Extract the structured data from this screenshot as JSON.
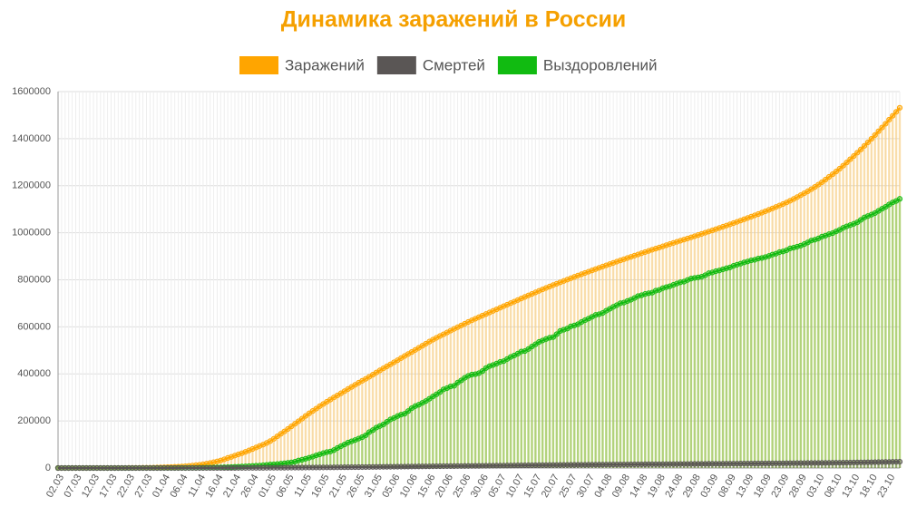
{
  "chart_data": {
    "type": "line",
    "title": "Динамика заражений в России",
    "categories": [
      "02.03",
      null,
      null,
      null,
      null,
      "07.03",
      null,
      null,
      null,
      null,
      "12.03",
      null,
      null,
      null,
      null,
      "17.03",
      null,
      null,
      null,
      null,
      "22.03",
      null,
      null,
      null,
      null,
      "27.03",
      null,
      null,
      null,
      null,
      "01.04",
      null,
      null,
      null,
      null,
      "06.04",
      null,
      null,
      null,
      null,
      "11.04",
      null,
      null,
      null,
      null,
      "16.04",
      null,
      null,
      null,
      null,
      "21.04",
      null,
      null,
      null,
      null,
      "26.04",
      null,
      null,
      null,
      null,
      "01.05",
      null,
      null,
      null,
      null,
      "06.05",
      null,
      null,
      null,
      null,
      "11.05",
      null,
      null,
      null,
      null,
      "16.05",
      null,
      null,
      null,
      null,
      "21.05",
      null,
      null,
      null,
      null,
      "26.05",
      null,
      null,
      null,
      null,
      "31.05",
      null,
      null,
      null,
      null,
      "05.06",
      null,
      null,
      null,
      null,
      "10.06",
      null,
      null,
      null,
      null,
      "15.06",
      null,
      null,
      null,
      null,
      "20.06",
      null,
      null,
      null,
      null,
      "25.06",
      null,
      null,
      null,
      null,
      "30.06",
      null,
      null,
      null,
      null,
      "05.07",
      null,
      null,
      null,
      null,
      "10.07",
      null,
      null,
      null,
      null,
      "15.07",
      null,
      null,
      null,
      null,
      "20.07",
      null,
      null,
      null,
      null,
      "25.07",
      null,
      null,
      null,
      null,
      "30.07",
      null,
      null,
      null,
      null,
      "04.08",
      null,
      null,
      null,
      null,
      "09.08",
      null,
      null,
      null,
      null,
      "14.08",
      null,
      null,
      null,
      null,
      "19.08",
      null,
      null,
      null,
      null,
      "24.08",
      null,
      null,
      null,
      null,
      "29.08",
      null,
      null,
      null,
      null,
      "03.09",
      null,
      null,
      null,
      null,
      "08.09",
      null,
      null,
      null,
      null,
      "13.09",
      null,
      null,
      null,
      null,
      "18.09",
      null,
      null,
      null,
      null,
      "23.09",
      null,
      null,
      null,
      null,
      "28.09",
      null,
      null,
      null,
      null,
      "03.10",
      null,
      null,
      null,
      null,
      "08.10",
      null,
      null,
      null,
      null,
      "13.10",
      null,
      null,
      null,
      null,
      "18.10",
      null,
      null,
      null,
      null,
      "23.10",
      null,
      null,
      null
    ],
    "series": [
      {
        "name": "Заражений",
        "color": "#ffa500",
        "values": [
          3,
          3,
          3,
          4,
          4,
          10,
          10,
          17,
          17,
          28,
          34,
          45,
          59,
          63,
          93,
          114,
          147,
          199,
          253,
          306,
          367,
          438,
          495,
          658,
          840,
          1036,
          1264,
          1534,
          1836,
          2337,
          2777,
          3548,
          4149,
          4731,
          5389,
          6343,
          7497,
          8672,
          10131,
          11917,
          13584,
          15770,
          18328,
          21102,
          24490,
          27938,
          32008,
          36793,
          42853,
          47121,
          52763,
          57999,
          62773,
          68622,
          74588,
          80949,
          87147,
          93558,
          99399,
          106498,
          114431,
          124054,
          134687,
          145268,
          155370,
          165929,
          177160,
          187859,
          198676,
          209688,
          221344,
          232243,
          242271,
          252245,
          262843,
          272043,
          281752,
          290678,
          299941,
          308705,
          317554,
          326448,
          335882,
          344481,
          353427,
          362342,
          370680,
          379051,
          387623,
          396575,
          405843,
          414878,
          423741,
          432277,
          440538,
          449256,
          458102,
          467073,
          476043,
          484630,
          493023,
          501800,
          510761,
          519458,
          528267,
          537210,
          545458,
          553301,
          561091,
          568292,
          576162,
          583879,
          591465,
          598878,
          606043,
          613148,
          620794,
          627646,
          634437,
          641156,
          647849,
          654405,
          661165,
          667883,
          674515,
          681251,
          687862,
          694230,
          700792,
          707301,
          713936,
          720547,
          727162,
          733699,
          739947,
          746369,
          752797,
          759203,
          765437,
          771546,
          777486,
          783328,
          789190,
          795038,
          800849,
          806720,
          812485,
          818120,
          823515,
          828990,
          834499,
          839981,
          845443,
          850870,
          856264,
          861423,
          866627,
          871894,
          877135,
          882347,
          887536,
          892654,
          897599,
          902701,
          907758,
          912823,
          917884,
          922853,
          927745,
          932493,
          937321,
          942106,
          946976,
          951897,
          956749,
          961493,
          966189,
          970865,
          975576,
          980405,
          985346,
          990326,
          995319,
          1000048,
          1005000,
          1009995,
          1015105,
          1020310,
          1025505,
          1030690,
          1035789,
          1041007,
          1046370,
          1051874,
          1057362,
          1062811,
          1068320,
          1073849,
          1079519,
          1085281,
          1091186,
          1097251,
          1103399,
          1109595,
          1115810,
          1122241,
          1128836,
          1136048,
          1143571,
          1151438,
          1159573,
          1167805,
          1176286,
          1185231,
          1194643,
          1204502,
          1214653,
          1225889,
          1237504,
          1248619,
          1260112,
          1272238,
          1285084,
          1298718,
          1312310,
          1326178,
          1340409,
          1354163,
          1369313,
          1384235,
          1399334,
          1415316,
          1431635,
          1447335,
          1463306,
          1480646,
          1497167,
          1513877,
          1531224
        ]
      },
      {
        "name": "Смертей",
        "color": "#5a5655",
        "values": [
          0,
          0,
          0,
          0,
          0,
          0,
          0,
          0,
          0,
          0,
          0,
          0,
          0,
          0,
          0,
          0,
          0,
          1,
          1,
          1,
          1,
          1,
          1,
          3,
          3,
          4,
          4,
          8,
          9,
          17,
          24,
          30,
          34,
          43,
          45,
          47,
          58,
          63,
          76,
          94,
          106,
          130,
          148,
          170,
          198,
          232,
          273,
          313,
          361,
          405,
          456,
          513,
          555,
          615,
          681,
          747,
          794,
          867,
          972,
          1073,
          1169,
          1222,
          1280,
          1356,
          1451,
          1537,
          1625,
          1723,
          1827,
          1915,
          2009,
          2116,
          2212,
          2305,
          2418,
          2537,
          2631,
          2722,
          2837,
          2972,
          3099,
          3249,
          3388,
          3541,
          3633,
          3807,
          3968,
          4142,
          4374,
          4555,
          4693,
          4855,
          5037,
          5215,
          5384,
          5528,
          5725,
          5859,
          5971,
          6142,
          6358,
          6532,
          6705,
          6829,
          6948,
          7081,
          7274,
          7468,
          7650,
          7831,
          7992,
          8111,
          8206,
          8359,
          8513,
          8605,
          8781,
          8969,
          9073,
          9152,
          9306,
          9536,
          9683,
          9859,
          10027,
          10161,
          10296,
          10494,
          10667,
          10843,
          11017,
          11205,
          11335,
          11439,
          11614,
          11853,
          12030,
          12191,
          12323,
          12427,
          12580,
          12745,
          12892,
          13046,
          13192,
          13354,
          13483,
          13579,
          13650,
          13802,
          13954,
          14128,
          14207,
          14351,
          14465,
          14606,
          14725,
          14854,
          14931,
          15001,
          15131,
          15231,
          15354,
          15498,
          15585,
          15685,
          15836,
          15951,
          16004,
          16099,
          16189,
          16310,
          16448,
          16568,
          16683,
          16804,
          16914,
          17045,
          17128,
          17250,
          17365,
          17528,
          17649,
          17683,
          17820,
          17914,
          18080,
          18135,
          18263,
          18365,
          18484,
          18579,
          18635,
          18785,
          18853,
          18917,
          19061,
          19195,
          19249,
          19339,
          19489,
          19649,
          19720,
          19799,
          19948,
          20056,
          20225,
          20385,
          20545,
          20630,
          20722,
          20891,
          21077,
          21251,
          21358,
          21475,
          21607,
          21663,
          21865,
          22056,
          22257,
          22454,
          22597,
          22722,
          22966,
          23205,
          23491,
          23723,
          23951,
          24187,
          24366,
          24635,
          24952,
          25242,
          25525,
          25821,
          26050,
          26269,
          26589
        ]
      },
      {
        "name": "Выздоровлений",
        "color": "#11bb11",
        "values": [
          3,
          3,
          3,
          3,
          3,
          3,
          3,
          3,
          3,
          3,
          3,
          3,
          3,
          3,
          5,
          5,
          5,
          8,
          9,
          12,
          16,
          16,
          22,
          34,
          38,
          51,
          64,
          66,
          79,
          108,
          190,
          235,
          281,
          333,
          355,
          406,
          494,
          580,
          698,
          794,
          1045,
          1238,
          1470,
          1694,
          1986,
          2304,
          2590,
          3037,
          3291,
          3873,
          4891,
          5568,
          6250,
          7024,
          7895,
          8587,
          9697,
          10286,
          11619,
          13220,
          14972,
          15701,
          16740,
          18331,
          19865,
          21921,
          23801,
          26608,
          32007,
          35054,
          39330,
          43530,
          48002,
          53830,
          58226,
          63017,
          67373,
          70124,
          76035,
          85127,
          92681,
          100041,
          107936,
          113302,
          118798,
          125002,
          131087,
          139116,
          152450,
          160938,
          171883,
          178380,
          185320,
          196190,
          206340,
          212680,
          220600,
          226730,
          230690,
          241820,
          254110,
          263010,
          268780,
          276840,
          284550,
          294300,
          304000,
          313150,
          322560,
          334110,
          339590,
          346740,
          349440,
          362950,
          372300,
          383300,
          391640,
          397050,
          398780,
          403050,
          411970,
          424860,
          433040,
          437780,
          443780,
          450870,
          454250,
          463160,
          471940,
          478270,
          486210,
          495180,
          497150,
          505710,
          516480,
          525760,
          535780,
          541950,
          548400,
          553600,
          556480,
          568760,
          582510,
          587730,
          592760,
          602250,
          606030,
          611210,
          620330,
          628100,
          635030,
          642660,
          650460,
          653580,
          658870,
          668550,
          676360,
          684920,
          692150,
          700400,
          703260,
          709870,
          715210,
          722560,
          730800,
          734390,
          739680,
          742970,
          745410,
          753680,
          756800,
          764670,
          768720,
          772660,
          778440,
          784130,
          789440,
          792250,
          799060,
          805210,
          807960,
          810190,
          813120,
          819330,
          827820,
          831210,
          836490,
          839560,
          844480,
          849020,
          852640,
          859510,
          864240,
          868580,
          873930,
          877840,
          882560,
          884910,
          890340,
          892810,
          896700,
          901160,
          907090,
          910880,
          917640,
          920480,
          925760,
          933350,
          936630,
          940850,
          945310,
          951740,
          958850,
          966950,
          970320,
          975810,
          983560,
          987710,
          993940,
          998390,
          1005570,
          1012190,
          1020790,
          1027130,
          1032330,
          1037970,
          1044460,
          1054570,
          1065020,
          1070900,
          1076970,
          1083670,
          1093000,
          1102000,
          1110000,
          1120000,
          1129000,
          1135000,
          1144000
        ]
      }
    ],
    "ylim": [
      0,
      1600000
    ],
    "yticks": [
      0,
      200000,
      400000,
      600000,
      800000,
      1000000,
      1200000,
      1400000,
      1600000
    ],
    "grid": true
  }
}
